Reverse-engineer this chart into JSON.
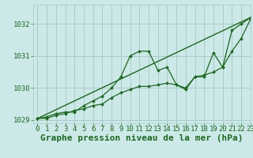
{
  "title": "Graphe pression niveau de la mer (hPa)",
  "bg_color": "#cce8e8",
  "grid_color": "#aacccc",
  "line_color": "#1a6b1a",
  "xlim": [
    -0.5,
    23
  ],
  "ylim": [
    1028.9,
    1032.6
  ],
  "yticks": [
    1029,
    1030,
    1031,
    1032
  ],
  "xticks": [
    0,
    1,
    2,
    3,
    4,
    5,
    6,
    7,
    8,
    9,
    10,
    11,
    12,
    13,
    14,
    15,
    16,
    17,
    18,
    19,
    20,
    21,
    22,
    23
  ],
  "series_with_markers": [
    [
      1029.05,
      1029.1,
      1029.2,
      1029.25,
      1029.25,
      1029.45,
      1029.6,
      1029.75,
      1030.0,
      1030.35,
      1031.0,
      1031.15,
      1031.15,
      1030.55,
      1030.65,
      1030.1,
      1029.95,
      1030.35,
      1030.35,
      1031.1,
      1030.65,
      1031.8,
      1032.0,
      1032.2
    ],
    [
      1029.05,
      1029.05,
      1029.15,
      1029.2,
      1029.3,
      1029.35,
      1029.45,
      1029.5,
      1029.7,
      1029.85,
      1029.95,
      1030.05,
      1030.05,
      1030.1,
      1030.15,
      1030.1,
      1030.0,
      1030.35,
      1030.4,
      1030.5,
      1030.65,
      1031.15,
      1031.55,
      1032.15
    ]
  ],
  "straight_line": [
    [
      0,
      1029.05
    ],
    [
      23,
      1032.2
    ]
  ],
  "xlabel_fontsize": 8,
  "tick_fontsize": 6.5,
  "label_color": "#1a6b1a"
}
